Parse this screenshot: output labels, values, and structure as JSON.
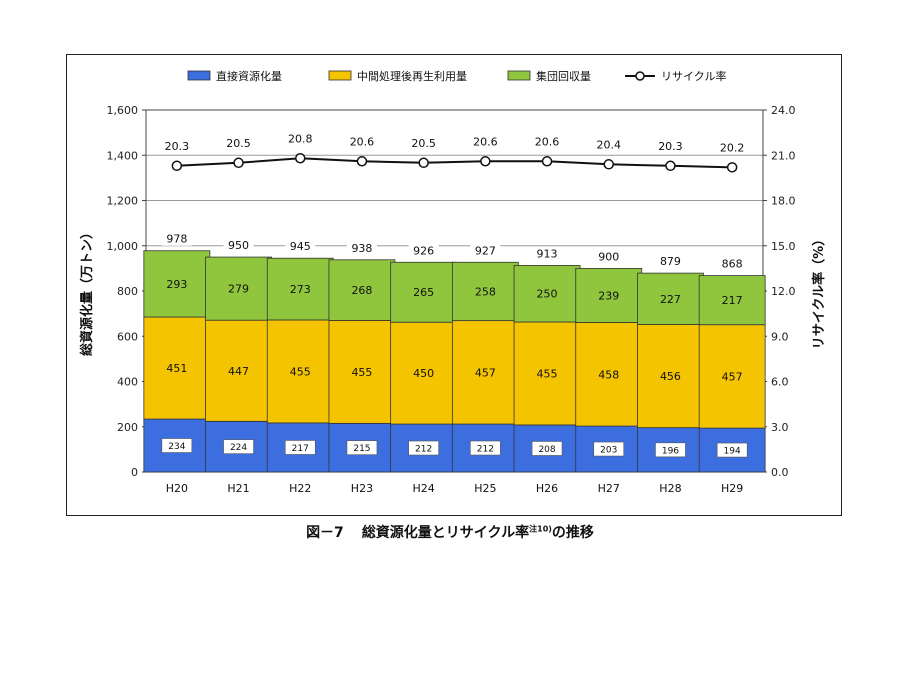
{
  "caption": {
    "figure_number": "図－7",
    "title_before": "総資源化量とリサイクル率",
    "note": "注10)",
    "title_after": "の推移"
  },
  "colors": {
    "direct": "#3d6ee0",
    "intermediate": "#f5c400",
    "group": "#8fc63d",
    "line": "#111111"
  },
  "chart_data": {
    "type": "bar",
    "stacked": true,
    "categories": [
      "H20",
      "H21",
      "H22",
      "H23",
      "H24",
      "H25",
      "H26",
      "H27",
      "H28",
      "H29"
    ],
    "series": [
      {
        "name": "直接資源化量",
        "color": "#3d6ee0",
        "values": [
          234,
          224,
          217,
          215,
          212,
          212,
          208,
          203,
          196,
          194
        ]
      },
      {
        "name": "中間処理後再生利用量",
        "color": "#f5c400",
        "values": [
          451,
          447,
          455,
          455,
          450,
          457,
          455,
          458,
          456,
          457
        ]
      },
      {
        "name": "集団回収量",
        "color": "#8fc63d",
        "values": [
          293,
          279,
          273,
          268,
          265,
          258,
          250,
          239,
          227,
          217
        ]
      }
    ],
    "totals": [
      978,
      950,
      945,
      938,
      926,
      927,
      913,
      900,
      879,
      868
    ],
    "line_series": {
      "name": "リサイクル率",
      "axis": "right",
      "values": [
        20.3,
        20.5,
        20.8,
        20.6,
        20.5,
        20.6,
        20.6,
        20.4,
        20.3,
        20.2
      ]
    },
    "ylabel": "総資源化量（万トン）",
    "y2label": "リサイクル率（%）",
    "ylim": [
      0,
      1600
    ],
    "y2lim": [
      0,
      24
    ],
    "yticks": [
      "0",
      "200",
      "400",
      "600",
      "800",
      "1,000",
      "1,200",
      "1,400",
      "1,600"
    ],
    "y2ticks": [
      "0.0",
      "3.0",
      "6.0",
      "9.0",
      "12.0",
      "15.0",
      "18.0",
      "21.0",
      "24.0"
    ],
    "grid": true,
    "legend_position": "top"
  }
}
